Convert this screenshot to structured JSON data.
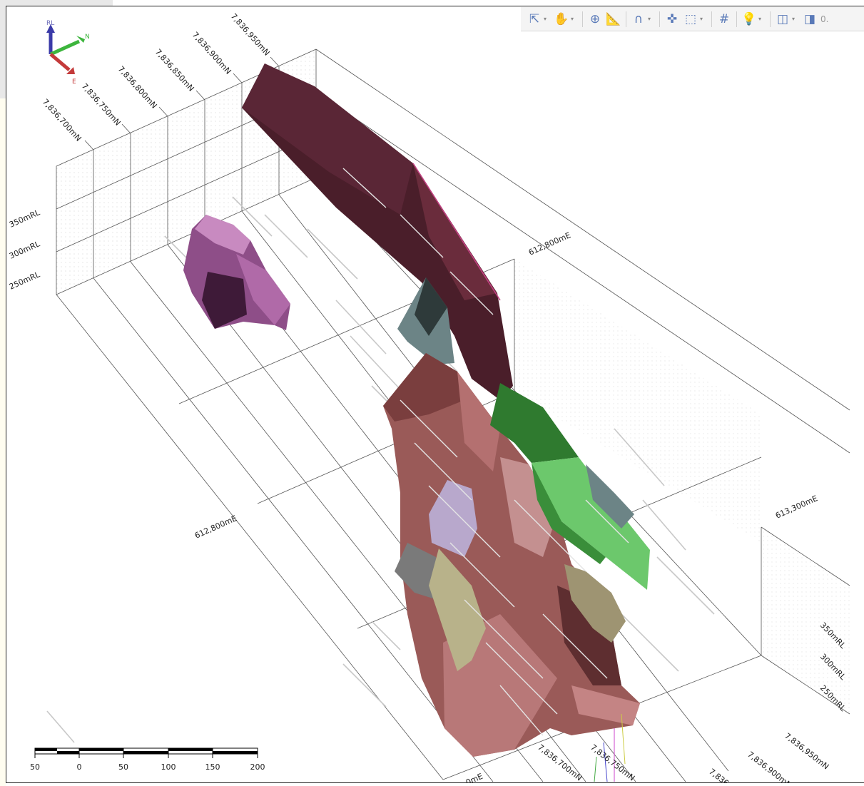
{
  "grid_labels": {
    "northing_top": [
      "7,836,700mN",
      "7,836,750mN",
      "7,836,800mN",
      "7,836,850mN",
      "7,836,900mN",
      "7,836,950mN"
    ],
    "rl_left": [
      "350mRL",
      "300mRL",
      "250mRL"
    ],
    "easting_upper": "612,800mE",
    "easting_mid": "612,800mE",
    "easting_right": "613,300mE",
    "rl_right": [
      "350mRL",
      "300mRL",
      "250mRL"
    ],
    "northing_bottom_right": [
      "7,836,950mN",
      "7,836,900mN",
      "7,836,"
    ],
    "northing_bottom": [
      "7,836,700mN",
      "7,836,750mN"
    ],
    "easting_bottom_clip": "0mE"
  },
  "axis_gizmo": {
    "up": "RL",
    "north": "N",
    "east": "E",
    "colors": {
      "up": "#3a3aa8",
      "north": "#3db53d",
      "east": "#c43a3a"
    }
  },
  "toolbar": {
    "buttons": [
      {
        "icon": "select-arrow-icon",
        "glyph": "⇱",
        "dropdown": true
      },
      {
        "icon": "pan-hand-icon",
        "glyph": "✋",
        "dropdown": true
      },
      {
        "icon": "crosshair-icon",
        "glyph": "⊕",
        "dropdown": false
      },
      {
        "icon": "measure-ruler-icon",
        "glyph": "📐",
        "dropdown": false
      },
      {
        "icon": "magnet-snap-icon",
        "glyph": "∩",
        "dropdown": true
      },
      {
        "icon": "move-cross-icon",
        "glyph": "✜",
        "dropdown": false
      },
      {
        "icon": "box-view-icon",
        "glyph": "⬚",
        "dropdown": true
      },
      {
        "icon": "grid-icon",
        "glyph": "#",
        "dropdown": false
      },
      {
        "icon": "light-bulb-icon",
        "glyph": "💡",
        "dropdown": true
      },
      {
        "icon": "layers-icon",
        "glyph": "◫",
        "dropdown": true
      },
      {
        "icon": "slice-icon",
        "glyph": "◨",
        "dropdown": false
      }
    ],
    "clipped_value": "0."
  },
  "scalebar": {
    "ticks": [
      "50",
      "0",
      "50",
      "100",
      "150",
      "200"
    ]
  },
  "colors": {
    "dark_body": "#4a1e2a",
    "salmon_body": "#9a5a58",
    "violet_body": "#9a5a94",
    "green_body": "#4aa84a",
    "slate_body": "#6c8486",
    "khaki_body": "#b8b28a",
    "lavender_body": "#b8a8cc"
  }
}
